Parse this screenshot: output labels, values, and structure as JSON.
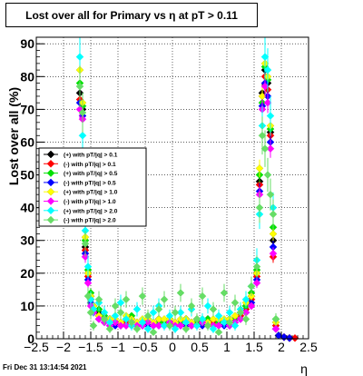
{
  "footer": "Fri Dec 31 13:14:54 2021",
  "chart_data": {
    "type": "scatter",
    "title": "Lost over all for Primary vs η at pT > 0.11",
    "xlabel": "η",
    "ylabel": "Lost over all (%)",
    "xlim": [
      -2.5,
      2.5
    ],
    "ylim": [
      0,
      92
    ],
    "xticks": [
      -2.5,
      -2,
      -1.5,
      -1,
      -0.5,
      0,
      0.5,
      1,
      1.5,
      2,
      2.5
    ],
    "xtick_labels": [
      "−2.5",
      "−2",
      "−1.5",
      "−1",
      "−0.5",
      "0",
      "0.5",
      "1",
      "1.5",
      "2",
      "2.5"
    ],
    "yticks": [
      0,
      10,
      20,
      30,
      40,
      50,
      60,
      70,
      80,
      90
    ],
    "grid": true,
    "legend_position": "middle-left",
    "series": [
      {
        "name": "(+) with pT/|q| > 0.1",
        "color": "#000000",
        "x": [
          -1.7,
          -1.65,
          -1.6,
          -1.55,
          -1.5,
          -1.45,
          -1.35,
          -1.25,
          -1.15,
          -1.05,
          -0.95,
          -0.85,
          -0.75,
          -0.65,
          -0.55,
          -0.45,
          -0.35,
          -0.25,
          -0.15,
          -0.05,
          0.05,
          0.15,
          0.25,
          0.35,
          0.45,
          0.55,
          0.65,
          0.75,
          0.85,
          0.95,
          1.05,
          1.15,
          1.25,
          1.35,
          1.45,
          1.55,
          1.6,
          1.65,
          1.7,
          1.75,
          1.8,
          1.85,
          1.9,
          1.95,
          2.05,
          2.15
        ],
        "y": [
          75,
          70,
          28,
          20,
          13,
          10,
          8,
          6,
          6,
          5,
          5,
          5,
          6,
          5,
          5,
          6,
          5,
          6,
          5,
          6,
          5,
          5,
          6,
          5,
          6,
          5,
          6,
          5,
          5,
          5,
          6,
          6,
          8,
          10,
          13,
          20,
          48,
          75,
          82,
          78,
          63,
          30,
          5,
          1,
          0.5,
          0.2
        ]
      },
      {
        "name": "(-) with pT/|q| > 0.1",
        "color": "#ff0000",
        "x": [
          -1.7,
          -1.65,
          -1.6,
          -1.55,
          -1.5,
          -1.45,
          -1.35,
          -1.25,
          -1.15,
          -1.05,
          -0.95,
          -0.85,
          -0.75,
          -0.65,
          -0.55,
          -0.45,
          -0.35,
          -0.25,
          -0.15,
          -0.05,
          0.05,
          0.15,
          0.25,
          0.35,
          0.45,
          0.55,
          0.65,
          0.75,
          0.85,
          0.95,
          1.05,
          1.15,
          1.25,
          1.35,
          1.45,
          1.55,
          1.6,
          1.65,
          1.7,
          1.75,
          1.8,
          1.85,
          1.9,
          1.95,
          2.05,
          2.15,
          2.25
        ],
        "y": [
          73,
          69,
          27,
          19,
          12,
          9,
          7,
          6,
          5,
          5,
          5,
          5,
          5,
          5,
          5,
          5,
          5,
          5,
          5,
          5,
          5,
          5,
          5,
          5,
          5,
          5,
          5,
          5,
          5,
          5,
          5,
          6,
          7,
          9,
          12,
          19,
          47,
          74,
          80,
          76,
          62,
          25,
          4,
          1,
          0.5,
          0.2,
          0.2
        ]
      },
      {
        "name": "(+) with pT/|q| > 0.5",
        "color": "#00e000",
        "x": [
          -1.7,
          -1.65,
          -1.6,
          -1.55,
          -1.5,
          -1.45,
          -1.35,
          -1.25,
          -1.15,
          -1.05,
          -0.95,
          -0.85,
          -0.75,
          -0.65,
          -0.55,
          -0.45,
          -0.35,
          -0.25,
          -0.15,
          -0.05,
          0.05,
          0.15,
          0.25,
          0.35,
          0.45,
          0.55,
          0.65,
          0.75,
          0.85,
          0.95,
          1.05,
          1.15,
          1.25,
          1.35,
          1.45,
          1.55,
          1.6,
          1.65,
          1.7,
          1.75,
          1.8,
          1.85,
          1.9,
          1.95
        ],
        "y": [
          78,
          71,
          30,
          21,
          14,
          10,
          9,
          7,
          6,
          5,
          4,
          6,
          7,
          4,
          5,
          6,
          4,
          5,
          5,
          6,
          4,
          5,
          6,
          4,
          5,
          5,
          6,
          4,
          5,
          5,
          6,
          6,
          9,
          10,
          14,
          21,
          50,
          72,
          83,
          79,
          64,
          34,
          6,
          1
        ]
      },
      {
        "name": "(-) with pT/|q| > 0.5",
        "color": "#0000ff",
        "x": [
          -1.7,
          -1.65,
          -1.6,
          -1.55,
          -1.5,
          -1.45,
          -1.35,
          -1.25,
          -1.15,
          -1.05,
          -0.95,
          -0.85,
          -0.75,
          -0.65,
          -0.55,
          -0.45,
          -0.35,
          -0.25,
          -0.15,
          -0.05,
          0.05,
          0.15,
          0.25,
          0.35,
          0.45,
          0.55,
          0.65,
          0.75,
          0.85,
          0.95,
          1.05,
          1.15,
          1.25,
          1.35,
          1.45,
          1.55,
          1.6,
          1.65,
          1.7,
          1.75,
          1.8,
          1.85,
          1.9,
          1.95,
          2.05,
          2.15
        ],
        "y": [
          72,
          68,
          26,
          18,
          11,
          8,
          6,
          5,
          4,
          4,
          4,
          4,
          4,
          4,
          4,
          4,
          4,
          4,
          4,
          4,
          4,
          4,
          4,
          4,
          4,
          4,
          4,
          4,
          4,
          4,
          4,
          5,
          6,
          8,
          11,
          18,
          45,
          71,
          78,
          74,
          60,
          28,
          3,
          1,
          0.5,
          0.2
        ]
      },
      {
        "name": "(+) with pT/|q| > 1.0",
        "color": "#ffff00",
        "x": [
          -1.7,
          -1.65,
          -1.6,
          -1.55,
          -1.5,
          -1.45,
          -1.35,
          -1.25,
          -1.15,
          -1.05,
          -0.95,
          -0.85,
          -0.75,
          -0.65,
          -0.55,
          -0.45,
          -0.35,
          -0.25,
          -0.15,
          -0.05,
          0.05,
          0.15,
          0.25,
          0.35,
          0.45,
          0.55,
          0.65,
          0.75,
          0.85,
          0.95,
          1.05,
          1.15,
          1.25,
          1.35,
          1.45,
          1.55,
          1.6,
          1.65,
          1.7,
          1.75,
          1.8,
          1.85,
          1.9
        ],
        "y": [
          82,
          72,
          31,
          20,
          13,
          10,
          7,
          6,
          6,
          6,
          5,
          7,
          6,
          5,
          6,
          6,
          5,
          6,
          6,
          6,
          5,
          6,
          6,
          5,
          6,
          6,
          5,
          6,
          6,
          6,
          6,
          7,
          8,
          11,
          13,
          20,
          52,
          74,
          84,
          80,
          65,
          32,
          5
        ]
      },
      {
        "name": "(-) with pT/|q| > 1.0",
        "color": "#ff00ff",
        "x": [
          -1.7,
          -1.65,
          -1.6,
          -1.55,
          -1.5,
          -1.45,
          -1.35,
          -1.25,
          -1.15,
          -1.05,
          -0.95,
          -0.85,
          -0.75,
          -0.65,
          -0.55,
          -0.45,
          -0.35,
          -0.25,
          -0.15,
          -0.05,
          0.05,
          0.15,
          0.25,
          0.35,
          0.45,
          0.55,
          0.65,
          0.75,
          0.85,
          0.95,
          1.05,
          1.15,
          1.25,
          1.35,
          1.45,
          1.55,
          1.6,
          1.65,
          1.7,
          1.75,
          1.8,
          1.85,
          1.9
        ],
        "y": [
          70,
          67,
          25,
          17,
          10,
          8,
          6,
          5,
          4,
          5,
          4,
          4,
          5,
          4,
          4,
          5,
          4,
          4,
          4,
          5,
          4,
          4,
          5,
          4,
          4,
          5,
          4,
          4,
          4,
          5,
          4,
          5,
          6,
          8,
          10,
          17,
          44,
          70,
          77,
          72,
          58,
          26,
          3
        ]
      },
      {
        "name": "(+) with pT/|q| > 2.0",
        "color": "#00ffff",
        "x": [
          -1.7,
          -1.65,
          -1.6,
          -1.55,
          -1.5,
          -1.45,
          -1.35,
          -1.25,
          -1.15,
          -1.05,
          -0.95,
          -0.85,
          -0.75,
          -0.65,
          -0.55,
          -0.45,
          -0.35,
          -0.25,
          -0.15,
          -0.05,
          0.05,
          0.15,
          0.25,
          0.35,
          0.45,
          0.55,
          0.65,
          0.75,
          0.85,
          0.95,
          1.05,
          1.15,
          1.25,
          1.35,
          1.45,
          1.55,
          1.6,
          1.65,
          1.7,
          1.75,
          1.8,
          1.85
        ],
        "y": [
          86,
          62,
          33,
          22,
          12,
          9,
          11,
          8,
          5,
          7,
          11,
          6,
          4,
          9,
          5,
          3,
          8,
          10,
          4,
          7,
          3,
          8,
          5,
          9,
          4,
          6,
          10,
          3,
          7,
          5,
          8,
          4,
          9,
          12,
          16,
          24,
          38,
          65,
          86,
          82,
          68,
          40
        ]
      },
      {
        "name": "(-) with pT/|q| > 2.0",
        "color": "#66dd66",
        "x": [
          -1.7,
          -1.65,
          -1.6,
          -1.55,
          -1.5,
          -1.45,
          -1.35,
          -1.25,
          -1.15,
          -1.05,
          -0.95,
          -0.85,
          -0.75,
          -0.65,
          -0.55,
          -0.45,
          -0.35,
          -0.25,
          -0.15,
          -0.05,
          0.05,
          0.15,
          0.25,
          0.35,
          0.45,
          0.55,
          0.65,
          0.75,
          0.85,
          0.95,
          1.05,
          1.15,
          1.25,
          1.35,
          1.45,
          1.55,
          1.6,
          1.65,
          1.7,
          1.75,
          1.8,
          1.85,
          1.9
        ],
        "y": [
          77,
          69,
          29,
          13,
          8,
          4,
          12,
          6,
          3,
          10,
          8,
          12,
          5,
          3,
          13,
          7,
          2,
          9,
          12,
          4,
          8,
          14,
          3,
          10,
          6,
          13,
          4,
          9,
          2,
          14,
          5,
          11,
          8,
          6,
          16,
          22,
          40,
          62,
          58,
          50,
          44,
          38,
          6
        ]
      }
    ]
  }
}
